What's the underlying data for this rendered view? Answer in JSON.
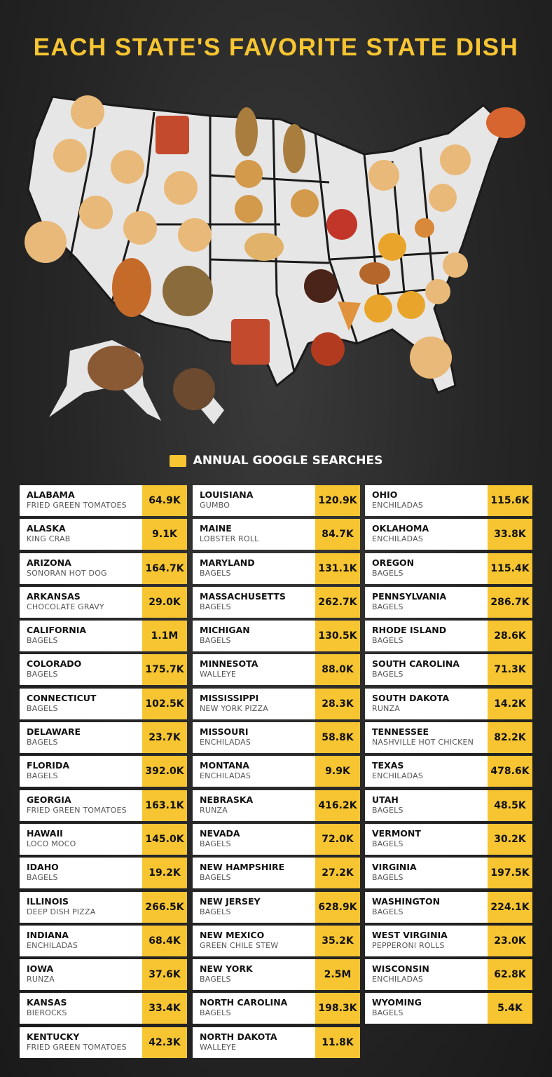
{
  "title": "EACH STATE'S FAVORITE STATE DISH",
  "legend": {
    "label": "ANNUAL GOOGLE SEARCHES",
    "color": "#f7c531"
  },
  "colors": {
    "accent": "#f7c531",
    "background": "#262626",
    "map": "#e6e6e6"
  },
  "columns": [
    [
      {
        "state": "ALABAMA",
        "dish": "FRIED GREEN TOMATOES",
        "searches": "64.9K"
      },
      {
        "state": "ALASKA",
        "dish": "KING CRAB",
        "searches": "9.1K"
      },
      {
        "state": "ARIZONA",
        "dish": "SONORAN HOT DOG",
        "searches": "164.7K"
      },
      {
        "state": "ARKANSAS",
        "dish": "CHOCOLATE GRAVY",
        "searches": "29.0K"
      },
      {
        "state": "CALIFORNIA",
        "dish": "BAGELS",
        "searches": "1.1M"
      },
      {
        "state": "COLORADO",
        "dish": "BAGELS",
        "searches": "175.7K"
      },
      {
        "state": "CONNECTICUT",
        "dish": "BAGELS",
        "searches": "102.5K"
      },
      {
        "state": "DELAWARE",
        "dish": "BAGELS",
        "searches": "23.7K"
      },
      {
        "state": "FLORIDA",
        "dish": "BAGELS",
        "searches": "392.0K"
      },
      {
        "state": "GEORGIA",
        "dish": "FRIED GREEN TOMATOES",
        "searches": "163.1K"
      },
      {
        "state": "HAWAII",
        "dish": "LOCO MOCO",
        "searches": "145.0K"
      },
      {
        "state": "IDAHO",
        "dish": "BAGELS",
        "searches": "19.2K"
      },
      {
        "state": "ILLINOIS",
        "dish": "DEEP DISH PIZZA",
        "searches": "266.5K"
      },
      {
        "state": "INDIANA",
        "dish": "ENCHILADAS",
        "searches": "68.4K"
      },
      {
        "state": "IOWA",
        "dish": "RUNZA",
        "searches": "37.6K"
      },
      {
        "state": "KANSAS",
        "dish": "BIEROCKS",
        "searches": "33.4K"
      },
      {
        "state": "KENTUCKY",
        "dish": "FRIED GREEN TOMATOES",
        "searches": "42.3K"
      }
    ],
    [
      {
        "state": "LOUISIANA",
        "dish": "GUMBO",
        "searches": "120.9K"
      },
      {
        "state": "MAINE",
        "dish": "LOBSTER ROLL",
        "searches": "84.7K"
      },
      {
        "state": "MARYLAND",
        "dish": "BAGELS",
        "searches": "131.1K"
      },
      {
        "state": "MASSACHUSETTS",
        "dish": "BAGELS",
        "searches": "262.7K"
      },
      {
        "state": "MICHIGAN",
        "dish": "BAGELS",
        "searches": "130.5K"
      },
      {
        "state": "MINNESOTA",
        "dish": "WALLEYE",
        "searches": "88.0K"
      },
      {
        "state": "MISSISSIPPI",
        "dish": "NEW YORK PIZZA",
        "searches": "28.3K"
      },
      {
        "state": "MISSOURI",
        "dish": "ENCHILADAS",
        "searches": "58.8K"
      },
      {
        "state": "MONTANA",
        "dish": "ENCHILADAS",
        "searches": "9.9K"
      },
      {
        "state": "NEBRASKA",
        "dish": "RUNZA",
        "searches": "416.2K"
      },
      {
        "state": "NEVADA",
        "dish": "BAGELS",
        "searches": "72.0K"
      },
      {
        "state": "NEW HAMPSHIRE",
        "dish": "BAGELS",
        "searches": "27.2K"
      },
      {
        "state": "NEW JERSEY",
        "dish": "BAGELS",
        "searches": "628.9K"
      },
      {
        "state": "NEW MEXICO",
        "dish": "GREEN CHILE STEW",
        "searches": "35.2K"
      },
      {
        "state": "NEW YORK",
        "dish": "BAGELS",
        "searches": "2.5M"
      },
      {
        "state": "NORTH CAROLINA",
        "dish": "BAGELS",
        "searches": "198.3K"
      },
      {
        "state": "NORTH DAKOTA",
        "dish": "WALLEYE",
        "searches": "11.8K"
      }
    ],
    [
      {
        "state": "OHIO",
        "dish": "ENCHILADAS",
        "searches": "115.6K"
      },
      {
        "state": "OKLAHOMA",
        "dish": "ENCHILADAS",
        "searches": "33.8K"
      },
      {
        "state": "OREGON",
        "dish": "BAGELS",
        "searches": "115.4K"
      },
      {
        "state": "PENNSYLVANIA",
        "dish": "BAGELS",
        "searches": "286.7K"
      },
      {
        "state": "RHODE ISLAND",
        "dish": "BAGELS",
        "searches": "28.6K"
      },
      {
        "state": "SOUTH CAROLINA",
        "dish": "BAGELS",
        "searches": "71.3K"
      },
      {
        "state": "SOUTH DAKOTA",
        "dish": "RUNZA",
        "searches": "14.2K"
      },
      {
        "state": "TENNESSEE",
        "dish": "NASHVILLE HOT CHICKEN",
        "searches": "82.2K"
      },
      {
        "state": "TEXAS",
        "dish": "ENCHILADAS",
        "searches": "478.6K"
      },
      {
        "state": "UTAH",
        "dish": "BAGELS",
        "searches": "48.5K"
      },
      {
        "state": "VERMONT",
        "dish": "BAGELS",
        "searches": "30.2K"
      },
      {
        "state": "VIRGINIA",
        "dish": "BAGELS",
        "searches": "197.5K"
      },
      {
        "state": "WASHINGTON",
        "dish": "BAGELS",
        "searches": "224.1K"
      },
      {
        "state": "WEST VIRGINIA",
        "dish": "PEPPERONI ROLLS",
        "searches": "23.0K"
      },
      {
        "state": "WISCONSIN",
        "dish": "ENCHILADAS",
        "searches": "62.8K"
      },
      {
        "state": "WYOMING",
        "dish": "BAGELS",
        "searches": "5.4K"
      }
    ]
  ]
}
